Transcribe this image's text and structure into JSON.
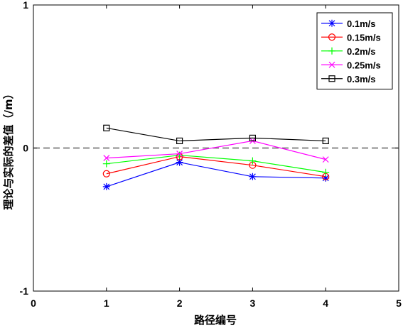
{
  "chart_data": {
    "type": "line",
    "xlabel": "路径编号",
    "ylabel": "理论与实际的差值（/m）",
    "xlim": [
      0,
      5
    ],
    "ylim": [
      -1,
      1
    ],
    "xticks": [
      "0",
      "1",
      "2",
      "3",
      "4",
      "5"
    ],
    "yticks": [
      "-1",
      "0",
      "1"
    ],
    "reference_line": {
      "y": 0,
      "style": "dashed",
      "color": "#606060"
    },
    "grid": false,
    "legend_position": "top-right",
    "x": [
      1,
      2,
      3,
      4
    ],
    "series": [
      {
        "name": "0.1m/s",
        "color": "#0000ff",
        "marker": "asterisk",
        "values": [
          -0.27,
          -0.1,
          -0.2,
          -0.21
        ]
      },
      {
        "name": "0.15m/s",
        "color": "#ff0000",
        "marker": "circle",
        "values": [
          -0.18,
          -0.06,
          -0.12,
          -0.2
        ]
      },
      {
        "name": "0.2m/s",
        "color": "#00ff00",
        "marker": "plus",
        "values": [
          -0.11,
          -0.05,
          -0.09,
          -0.17
        ]
      },
      {
        "name": "0.25m/s",
        "color": "#ff00ff",
        "marker": "cross",
        "values": [
          -0.07,
          -0.04,
          0.05,
          -0.08
        ]
      },
      {
        "name": "0.3m/s",
        "color": "#000000",
        "marker": "square",
        "values": [
          0.14,
          0.05,
          0.07,
          0.05
        ]
      }
    ]
  }
}
